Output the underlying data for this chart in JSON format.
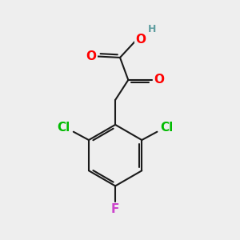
{
  "background_color": "#eeeeee",
  "bond_color": "#1a1a1a",
  "O_color": "#ff0000",
  "H_color": "#5f9ea0",
  "Cl_color": "#00bb00",
  "F_color": "#cc44cc",
  "bond_width": 1.5,
  "font_size_atoms": 11,
  "font_size_H": 9,
  "figsize": [
    3.0,
    3.0
  ],
  "dpi": 100,
  "xlim": [
    0,
    10
  ],
  "ylim": [
    0,
    10
  ]
}
